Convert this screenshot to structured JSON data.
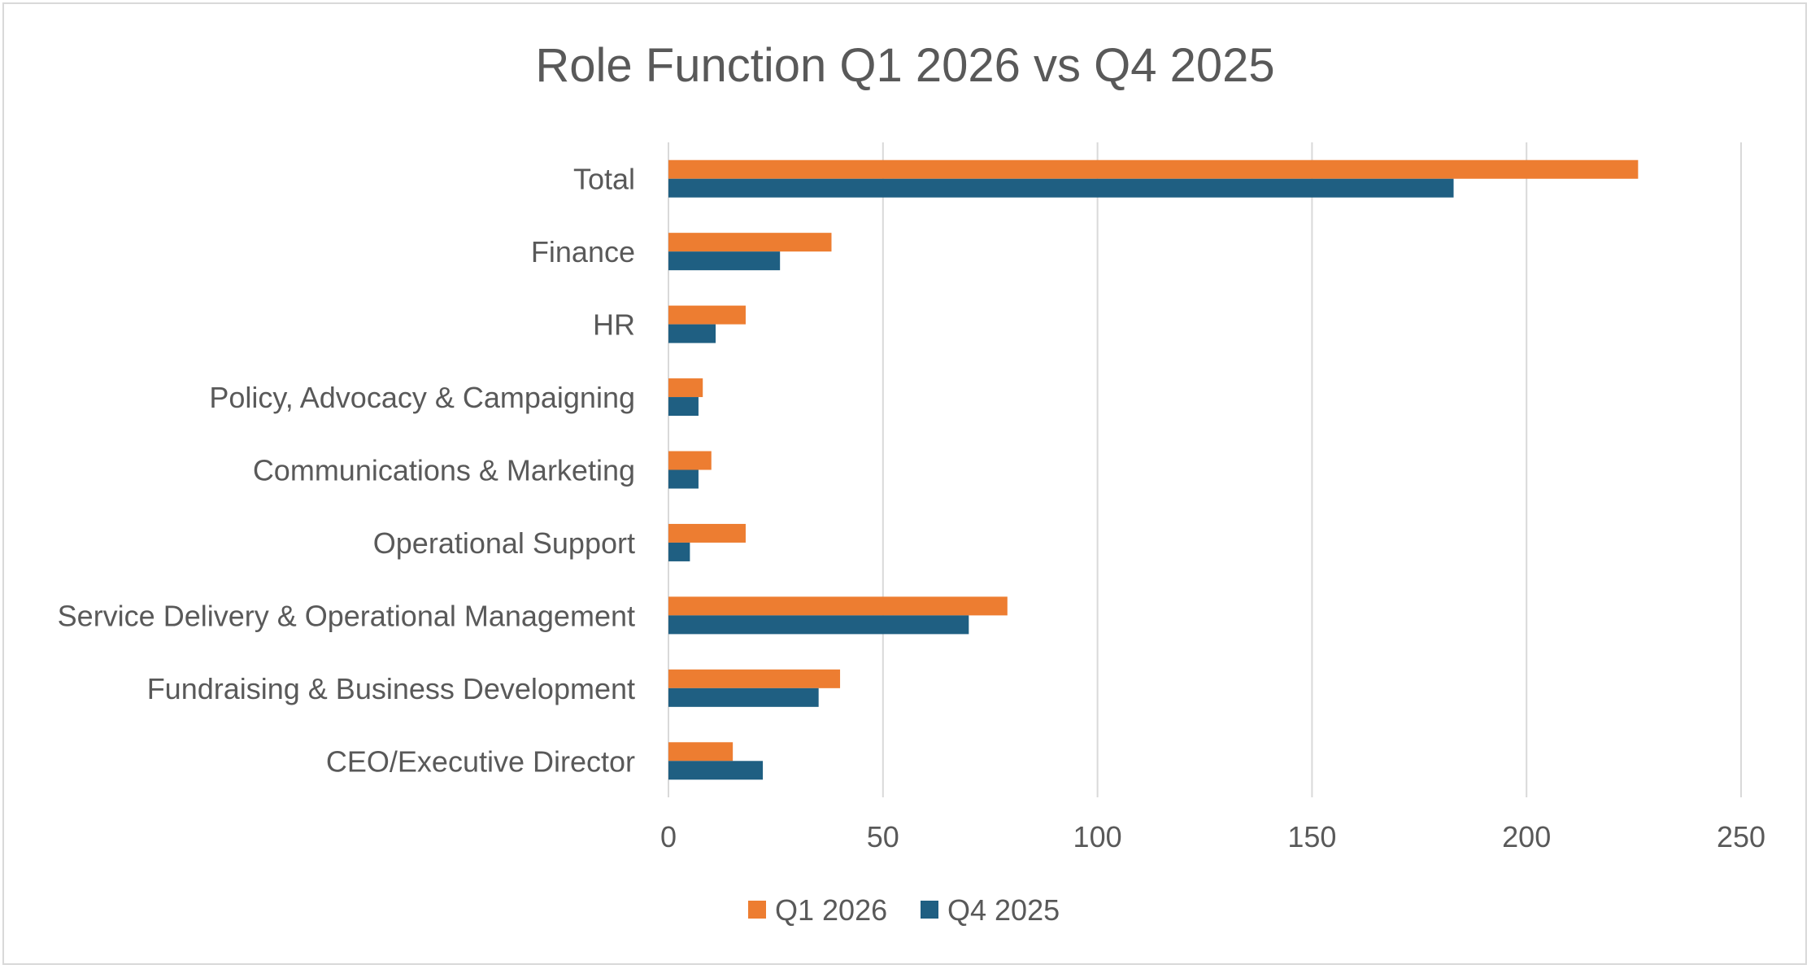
{
  "chart_data": {
    "type": "bar",
    "orientation": "horizontal",
    "title": "Role Function Q1 2026 vs Q4 2025",
    "xlabel": "",
    "ylabel": "",
    "categories": [
      "Total",
      "Finance",
      "HR",
      "Policy, Advocacy & Campaigning",
      "Communications & Marketing",
      "Operational Support",
      "Service Delivery & Operational Management",
      "Fundraising & Business Development",
      "CEO/Executive Director"
    ],
    "series": [
      {
        "name": "Q1 2026",
        "color": "#ED7D31",
        "values": [
          226,
          38,
          18,
          8,
          10,
          18,
          79,
          40,
          15
        ]
      },
      {
        "name": "Q4 2025",
        "color": "#1F5F82",
        "values": [
          183,
          26,
          11,
          7,
          7,
          5,
          70,
          35,
          22
        ]
      }
    ],
    "xlim": [
      0,
      250
    ],
    "ticks": [
      0,
      50,
      100,
      150,
      200,
      250
    ],
    "tick_labels": [
      "0",
      "50",
      "100",
      "150",
      "200",
      "250"
    ],
    "grid": true,
    "legend_position": "bottom"
  }
}
